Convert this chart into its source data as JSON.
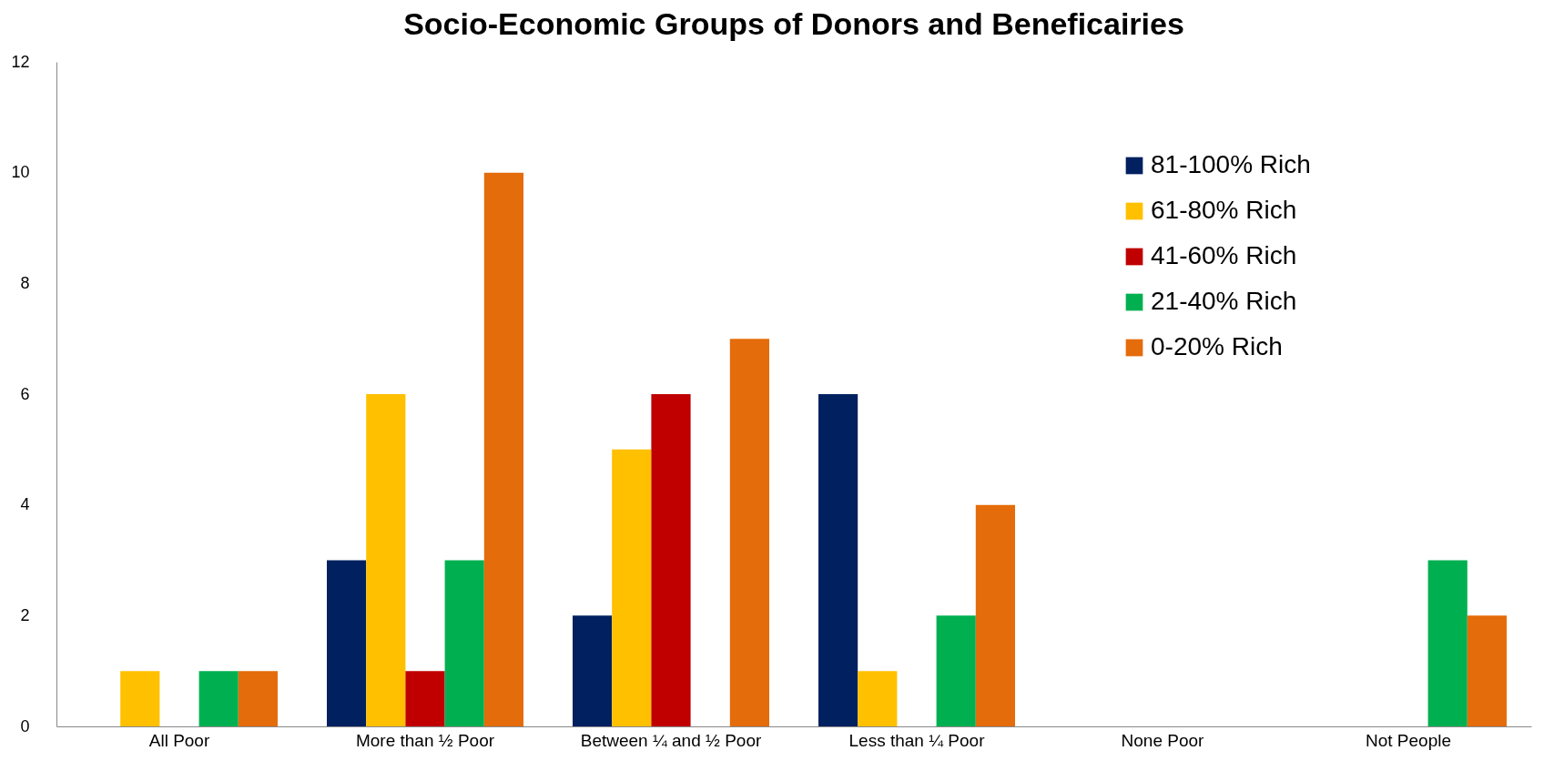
{
  "chart_data": {
    "type": "bar",
    "title": "Socio-Economic Groups of Donors and Beneficairies",
    "categories": [
      "All Poor",
      "More than ½ Poor",
      "Between ¼ and ½ Poor",
      "Less than ¼ Poor",
      "None Poor",
      "Not People"
    ],
    "series": [
      {
        "name": "81-100% Rich",
        "color": "#002060",
        "values": [
          0,
          3,
          2,
          6,
          0,
          0
        ]
      },
      {
        "name": "61-80% Rich",
        "color": "#ffc000",
        "values": [
          1,
          6,
          5,
          1,
          0,
          0
        ]
      },
      {
        "name": "41-60% Rich",
        "color": "#c00000",
        "values": [
          0,
          1,
          6,
          0,
          0,
          0
        ]
      },
      {
        "name": "21-40% Rich",
        "color": "#00b050",
        "values": [
          1,
          3,
          0,
          2,
          0,
          3
        ]
      },
      {
        "name": "0-20% Rich",
        "color": "#e46c0a",
        "values": [
          1,
          10,
          7,
          4,
          0,
          2
        ]
      }
    ],
    "ylim": [
      0,
      12
    ],
    "yticks": [
      0,
      2,
      4,
      6,
      8,
      10,
      12
    ],
    "grid": false,
    "legend": "top right"
  }
}
